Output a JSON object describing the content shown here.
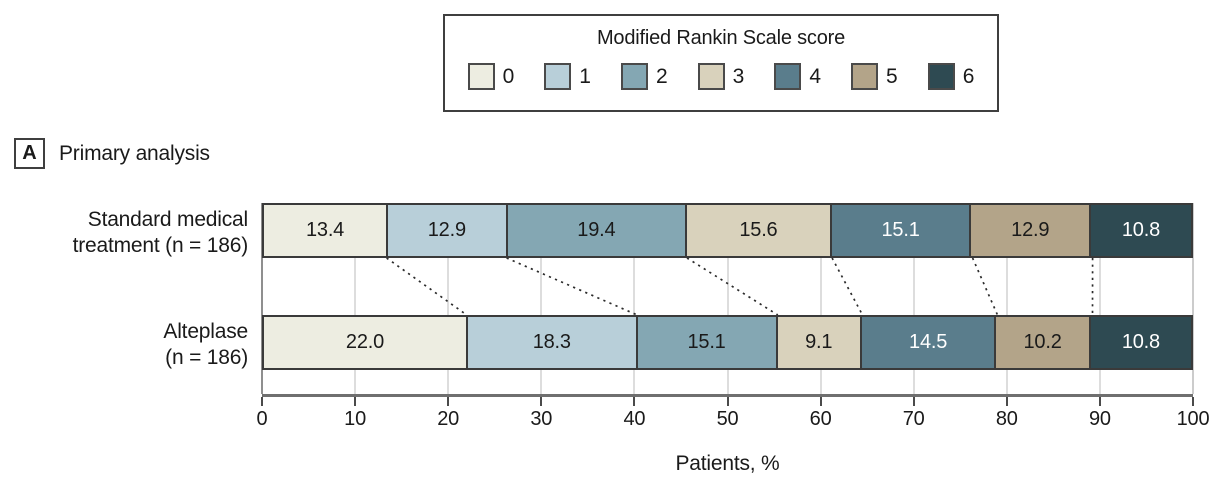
{
  "panel": {
    "letter": "A",
    "title": "Primary analysis"
  },
  "legend": {
    "title": "Modified Rankin Scale score"
  },
  "colors": {
    "bar_border": "#3a3a3a",
    "axis_line": "#6f6f6f",
    "gridline": "#dddddd",
    "gridline_zero": "#8f8f8f",
    "gridline_end": "#cccccc",
    "connector": "#2b2b2b"
  },
  "chart_data": {
    "type": "bar",
    "orientation": "horizontal-stacked",
    "title": "Primary analysis",
    "legend_title": "Modified Rankin Scale score",
    "legend_position": "top-center",
    "categories": [
      {
        "lines": [
          "Standard medical",
          "treatment (n = 186)"
        ]
      },
      {
        "lines": [
          "Alteplase",
          "(n = 186)"
        ]
      }
    ],
    "series": [
      {
        "name": "0",
        "color": "#EDEDE1",
        "text_color": "#1a1a1a",
        "values": [
          13.4,
          22.0
        ]
      },
      {
        "name": "1",
        "color": "#B8CFD9",
        "text_color": "#1a1a1a",
        "values": [
          12.9,
          18.3
        ]
      },
      {
        "name": "2",
        "color": "#84A7B3",
        "text_color": "#1a1a1a",
        "values": [
          19.4,
          15.1
        ]
      },
      {
        "name": "3",
        "color": "#D9D2BC",
        "text_color": "#1a1a1a",
        "values": [
          15.6,
          9.1
        ]
      },
      {
        "name": "4",
        "color": "#5A7D8C",
        "text_color": "#ffffff",
        "values": [
          15.1,
          14.5
        ]
      },
      {
        "name": "5",
        "color": "#B3A489",
        "text_color": "#1a1a1a",
        "values": [
          12.9,
          10.2
        ]
      },
      {
        "name": "6",
        "color": "#2E4A52",
        "text_color": "#ffffff",
        "values": [
          10.8,
          10.8
        ]
      }
    ],
    "xlabel": "Patients, %",
    "xticks": [
      0,
      10,
      20,
      30,
      40,
      50,
      60,
      70,
      80,
      90,
      100
    ],
    "xlim": [
      0,
      100
    ],
    "grid": true,
    "value_decimals": 1,
    "connectors": "dotted-between-stack-boundaries"
  }
}
